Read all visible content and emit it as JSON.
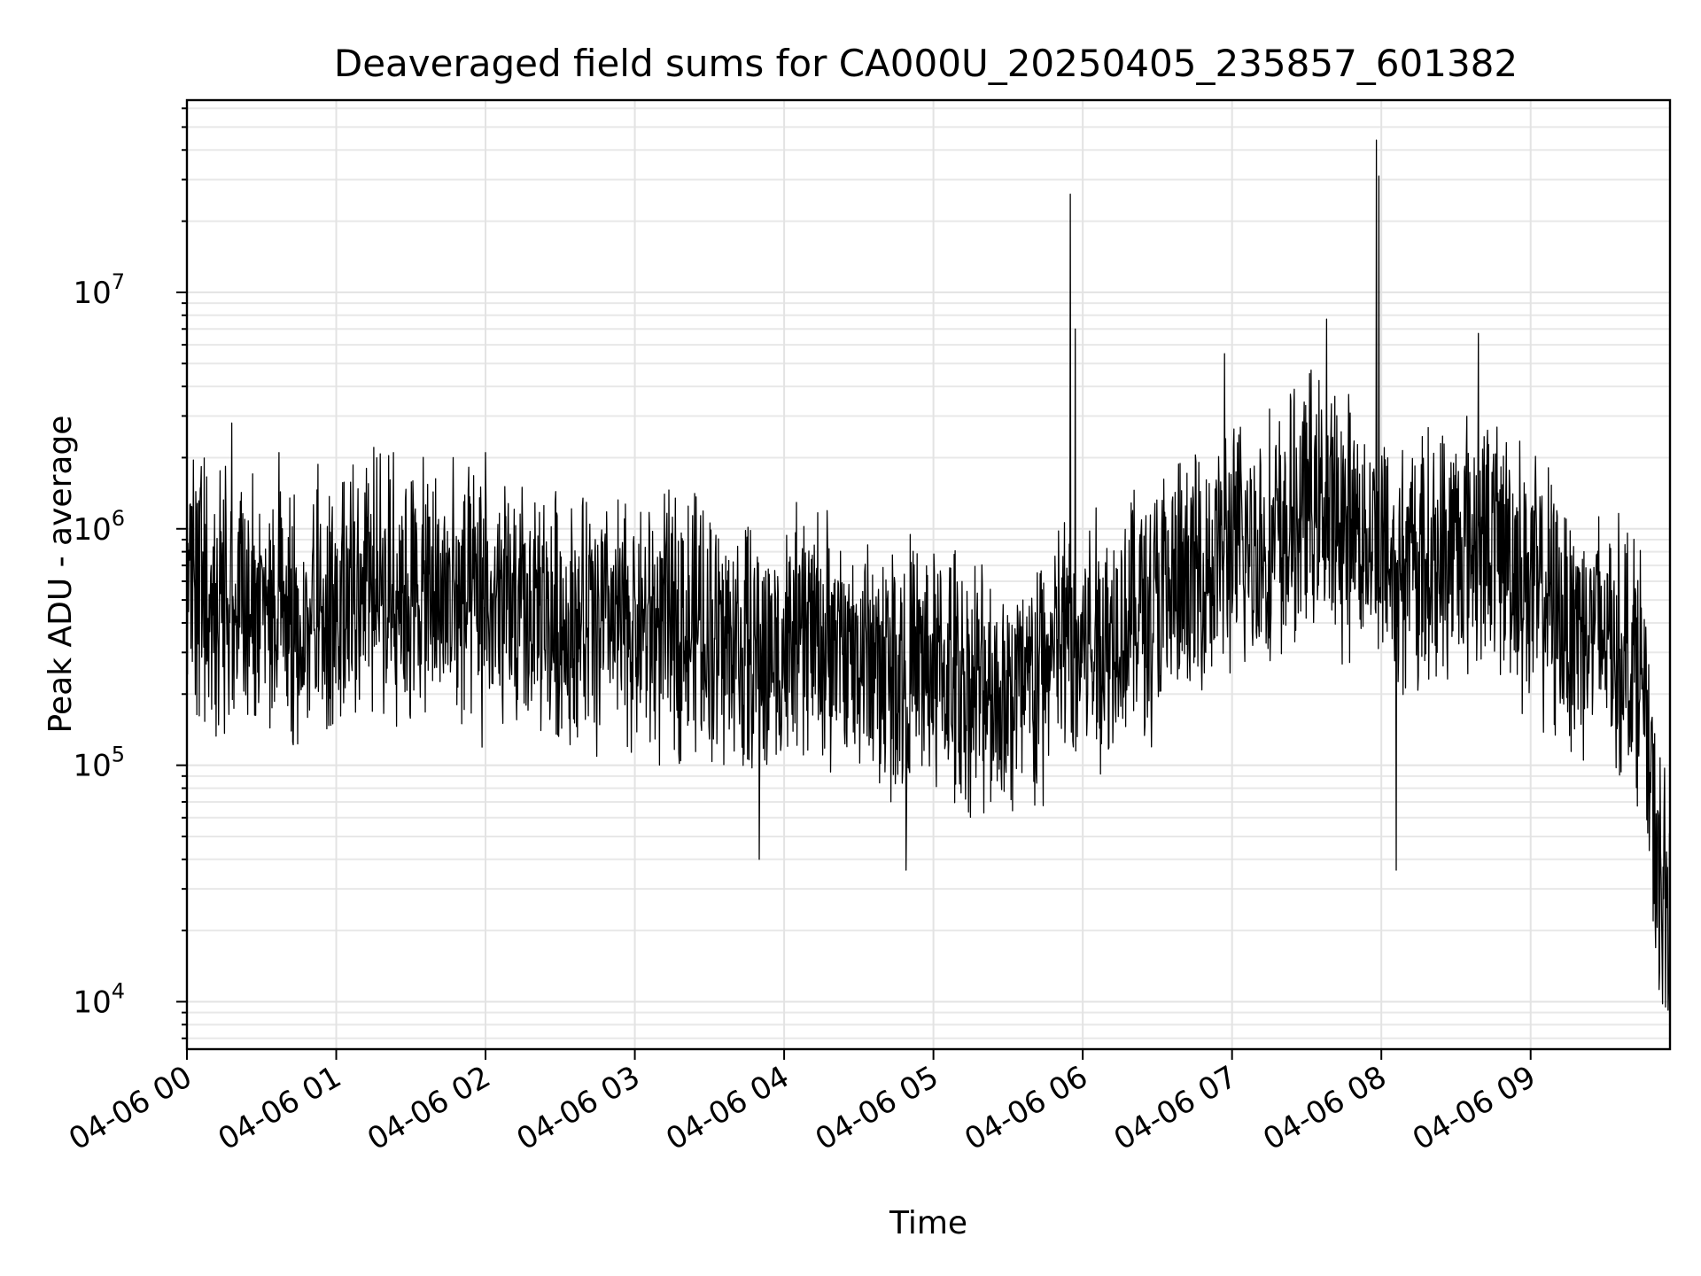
{
  "chart_data": {
    "type": "line",
    "title": "Deaveraged field sums for CA000U_20250405_235857_601382",
    "xlabel": "Time",
    "ylabel": "Peak ADU - average",
    "yscale": "log",
    "ylim": [
      6300,
      65000000
    ],
    "xlim": [
      "04-06 00:00",
      "04-06 09:56"
    ],
    "grid": true,
    "x_ticks": [
      "04-06 00",
      "04-06 01",
      "04-06 02",
      "04-06 03",
      "04-06 04",
      "04-06 05",
      "04-06 06",
      "04-06 07",
      "04-06 08",
      "04-06 09"
    ],
    "y_ticks": [
      {
        "base": "10",
        "exp": "4",
        "value": 10000
      },
      {
        "base": "10",
        "exp": "5",
        "value": 100000
      },
      {
        "base": "10",
        "exp": "6",
        "value": 1000000
      },
      {
        "base": "10",
        "exp": "7",
        "value": 10000000
      }
    ],
    "series": [
      {
        "color": "#000000",
        "points": [
          [
            "04-06 00:00",
            600000
          ],
          [
            "04-06 00:10",
            500000
          ],
          [
            "04-06 00:20",
            450000
          ],
          [
            "04-06 00:30",
            430000
          ],
          [
            "04-06 00:40",
            420000
          ],
          [
            "04-06 00:50",
            440000
          ],
          [
            "04-06 01:00",
            550000
          ],
          [
            "04-06 01:10",
            600000
          ],
          [
            "04-06 01:20",
            560000
          ],
          [
            "04-06 01:30",
            540000
          ],
          [
            "04-06 01:40",
            500000
          ],
          [
            "04-06 01:50",
            480000
          ],
          [
            "04-06 02:00",
            450000
          ],
          [
            "04-06 02:10",
            430000
          ],
          [
            "04-06 02:20",
            420000
          ],
          [
            "04-06 02:30",
            410000
          ],
          [
            "04-06 02:40",
            400000
          ],
          [
            "04-06 02:50",
            390000
          ],
          [
            "04-06 03:00",
            380000
          ],
          [
            "04-06 03:10",
            390000
          ],
          [
            "04-06 03:20",
            420000
          ],
          [
            "04-06 03:30",
            380000
          ],
          [
            "04-06 03:40",
            330000
          ],
          [
            "04-06 03:50",
            280000
          ],
          [
            "04-06 04:00",
            300000
          ],
          [
            "04-06 04:10",
            380000
          ],
          [
            "04-06 04:20",
            300000
          ],
          [
            "04-06 04:30",
            280000
          ],
          [
            "04-06 04:40",
            270000
          ],
          [
            "04-06 04:50",
            260000
          ],
          [
            "04-06 05:00",
            250000
          ],
          [
            "04-06 05:10",
            230000
          ],
          [
            "04-06 05:20",
            210000
          ],
          [
            "04-06 05:30",
            200000
          ],
          [
            "04-06 05:40",
            210000
          ],
          [
            "04-06 05:50",
            320000
          ],
          [
            "04-06 06:00",
            330000
          ],
          [
            "04-06 06:10",
            350000
          ],
          [
            "04-06 06:20",
            450000
          ],
          [
            "04-06 06:30",
            500000
          ],
          [
            "04-06 06:40",
            550000
          ],
          [
            "04-06 06:50",
            700000
          ],
          [
            "04-06 07:00",
            800000
          ],
          [
            "04-06 07:10",
            850000
          ],
          [
            "04-06 07:20",
            900000
          ],
          [
            "04-06 07:30",
            1300000
          ],
          [
            "04-06 07:40",
            1100000
          ],
          [
            "04-06 07:50",
            1000000
          ],
          [
            "04-06 08:00",
            800000
          ],
          [
            "04-06 08:10",
            700000
          ],
          [
            "04-06 08:20",
            750000
          ],
          [
            "04-06 08:30",
            850000
          ],
          [
            "04-06 08:40",
            900000
          ],
          [
            "04-06 08:50",
            800000
          ],
          [
            "04-06 09:00",
            600000
          ],
          [
            "04-06 09:10",
            450000
          ],
          [
            "04-06 09:20",
            400000
          ],
          [
            "04-06 09:30",
            350000
          ],
          [
            "04-06 09:40",
            300000
          ],
          [
            "04-06 09:45",
            250000
          ],
          [
            "04-06 09:50",
            40000
          ],
          [
            "04-06 09:56",
            28000
          ]
        ],
        "spikes": [
          [
            "04-06 00:18",
            2800000
          ],
          [
            "04-06 00:37",
            2100000
          ],
          [
            "04-06 01:23",
            2100000
          ],
          [
            "04-06 01:47",
            2000000
          ],
          [
            "04-06 02:00",
            2100000
          ],
          [
            "04-06 03:50",
            40000
          ],
          [
            "04-06 04:49",
            36000
          ],
          [
            "04-06 05:55",
            26000000
          ],
          [
            "04-06 05:57",
            7000000
          ],
          [
            "04-06 06:57",
            5500000
          ],
          [
            "04-06 07:38",
            7700000
          ],
          [
            "04-06 07:58",
            44000000
          ],
          [
            "04-06 07:59",
            31000000
          ],
          [
            "04-06 08:06",
            36000
          ],
          [
            "04-06 08:39",
            6700000
          ],
          [
            "04-06 09:53",
            9800
          ]
        ]
      }
    ]
  }
}
